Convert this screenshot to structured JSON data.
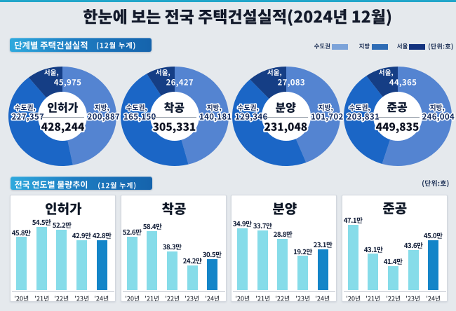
{
  "page": {
    "title": "한눈에 보는 전국 주택건설실적(2024년 12월)",
    "accent_color": "#21a6ca",
    "background": "#e5e9ed"
  },
  "stage_section": {
    "badge": {
      "label": "단계별 주택건설실적",
      "period": "(12월 누계)"
    },
    "legend": {
      "items": [
        {
          "label": "수도권",
          "color": "#7ca3d9"
        },
        {
          "label": "지방",
          "color": "#2e6cb5"
        },
        {
          "label": "서울",
          "color": "#13337e"
        }
      ],
      "unit": "(단위:호)"
    },
    "donuts": [
      {
        "name": "인허가",
        "total": "428,244",
        "labels": {
          "seoul": {
            "region": "서울,",
            "value": "45,975"
          },
          "metro": {
            "region": "수도권,",
            "value": "227,357"
          },
          "provinces": {
            "region": "지방,",
            "value": "200,887"
          }
        }
      },
      {
        "name": "착공",
        "total": "305,331",
        "labels": {
          "seoul": {
            "region": "서울,",
            "value": "26,427"
          },
          "metro": {
            "region": "수도권,",
            "value": "165,150"
          },
          "provinces": {
            "region": "지방,",
            "value": "140,181"
          }
        }
      },
      {
        "name": "분양",
        "total": "231,048",
        "labels": {
          "seoul": {
            "region": "서울,",
            "value": "27,083"
          },
          "metro": {
            "region": "수도권,",
            "value": "129,346"
          },
          "provinces": {
            "region": "지방,",
            "value": "101,702"
          }
        }
      },
      {
        "name": "준공",
        "total": "449,835",
        "labels": {
          "seoul": {
            "region": "서울,",
            "value": "44,365"
          },
          "metro": {
            "region": "수도권,",
            "value": "203,831"
          },
          "provinces": {
            "region": "지방,",
            "value": "246,004"
          }
        }
      }
    ]
  },
  "trend_section": {
    "badge": {
      "label": "전국 연도별 물량추이",
      "period": "(12월 누계)"
    },
    "unit": "(단위:호)",
    "charts": [
      {
        "title": "인허가",
        "years": [
          "'20년",
          "'21년",
          "'22년",
          "'23년",
          "'24년"
        ],
        "value_labels": [
          "45.8만",
          "54.5만",
          "52.2만",
          "42.9만",
          "42.8만"
        ]
      },
      {
        "title": "착공",
        "years": [
          "'20년",
          "'21년",
          "'22년",
          "'23년",
          "'24년"
        ],
        "value_labels": [
          "52.6만",
          "58.4만",
          "38.3만",
          "24.2만",
          "30.5만"
        ]
      },
      {
        "title": "분양",
        "years": [
          "'20년",
          "'21년",
          "'22년",
          "'23년",
          "'24년"
        ],
        "value_labels": [
          "34.9만",
          "33.7만",
          "28.8만",
          "19.2만",
          "23.1만"
        ]
      },
      {
        "title": "준공",
        "years": [
          "'20년",
          "'21년",
          "'22년",
          "'23년",
          "'24년"
        ],
        "value_labels": [
          "47.1만",
          "43.1만",
          "41.4만",
          "43.6만",
          "45.0만"
        ]
      }
    ]
  },
  "chart_data": [
    {
      "type": "pie",
      "variant": "donut",
      "title": "인허가",
      "unit": "호",
      "labels": [
        "지방",
        "수도권(서울 제외)",
        "서울"
      ],
      "values": [
        200887,
        181382,
        45975
      ],
      "total": 428244,
      "breakdown": {
        "수도권": 227357,
        "지방": 200887,
        "서울": 45975
      },
      "colors": [
        "#5484d1",
        "#1b66c6",
        "#153e85"
      ],
      "start_angle": 0,
      "direction": "clockwise"
    },
    {
      "type": "pie",
      "variant": "donut",
      "title": "착공",
      "unit": "호",
      "labels": [
        "지방",
        "수도권(서울 제외)",
        "서울"
      ],
      "values": [
        140181,
        138723,
        26427
      ],
      "total": 305331,
      "breakdown": {
        "수도권": 165150,
        "지방": 140181,
        "서울": 26427
      },
      "colors": [
        "#5484d1",
        "#1b66c6",
        "#153e85"
      ],
      "start_angle": 0,
      "direction": "clockwise"
    },
    {
      "type": "pie",
      "variant": "donut",
      "title": "분양",
      "unit": "호",
      "labels": [
        "지방",
        "수도권(서울 제외)",
        "서울"
      ],
      "values": [
        101702,
        102263,
        27083
      ],
      "total": 231048,
      "breakdown": {
        "수도권": 129346,
        "지방": 101702,
        "서울": 27083
      },
      "colors": [
        "#5484d1",
        "#1b66c6",
        "#153e85"
      ],
      "start_angle": 0,
      "direction": "clockwise"
    },
    {
      "type": "pie",
      "variant": "donut",
      "title": "준공",
      "unit": "호",
      "labels": [
        "지방",
        "수도권(서울 제외)",
        "서울"
      ],
      "values": [
        246004,
        159466,
        44365
      ],
      "total": 449835,
      "breakdown": {
        "수도권": 203831,
        "지방": 246004,
        "서울": 44365
      },
      "colors": [
        "#5484d1",
        "#1b66c6",
        "#153e85"
      ],
      "start_angle": 0,
      "direction": "clockwise"
    },
    {
      "type": "bar",
      "title": "인허가",
      "unit": "만 호",
      "categories": [
        "'20년",
        "'21년",
        "'22년",
        "'23년",
        "'24년"
      ],
      "values": [
        45.8,
        54.5,
        52.2,
        42.9,
        42.8
      ],
      "ylim": [
        0.0,
        93.3
      ],
      "bar_colors": [
        "#86dce9",
        "#86dce9",
        "#86dce9",
        "#86dce9",
        "#1485c8"
      ],
      "grid": false,
      "legend": "none"
    },
    {
      "type": "bar",
      "title": "착공",
      "unit": "만 호",
      "categories": [
        "'20년",
        "'21년",
        "'22년",
        "'23년",
        "'24년"
      ],
      "values": [
        52.6,
        58.4,
        38.3,
        24.2,
        30.5
      ],
      "ylim": [
        0.0,
        106.6
      ],
      "bar_colors": [
        "#86dce9",
        "#86dce9",
        "#86dce9",
        "#86dce9",
        "#1485c8"
      ],
      "grid": false,
      "legend": "none"
    },
    {
      "type": "bar",
      "title": "분양",
      "unit": "만 호",
      "categories": [
        "'20년",
        "'21년",
        "'22년",
        "'23년",
        "'24년"
      ],
      "values": [
        34.9,
        33.7,
        28.8,
        19.2,
        23.1
      ],
      "ylim": [
        0.0,
        60.9
      ],
      "bar_colors": [
        "#86dce9",
        "#86dce9",
        "#86dce9",
        "#86dce9",
        "#1485c8"
      ],
      "grid": false,
      "legend": "none"
    },
    {
      "type": "bar",
      "title": "준공",
      "unit": "만 호",
      "categories": [
        "'20년",
        "'21년",
        "'22년",
        "'23년",
        "'24년"
      ],
      "values": [
        47.1,
        43.1,
        41.4,
        43.6,
        45.0
      ],
      "ylim": [
        38.08,
        53.1
      ],
      "bar_colors": [
        "#86dce9",
        "#86dce9",
        "#86dce9",
        "#86dce9",
        "#1485c8"
      ],
      "grid": false,
      "legend": "none"
    }
  ]
}
